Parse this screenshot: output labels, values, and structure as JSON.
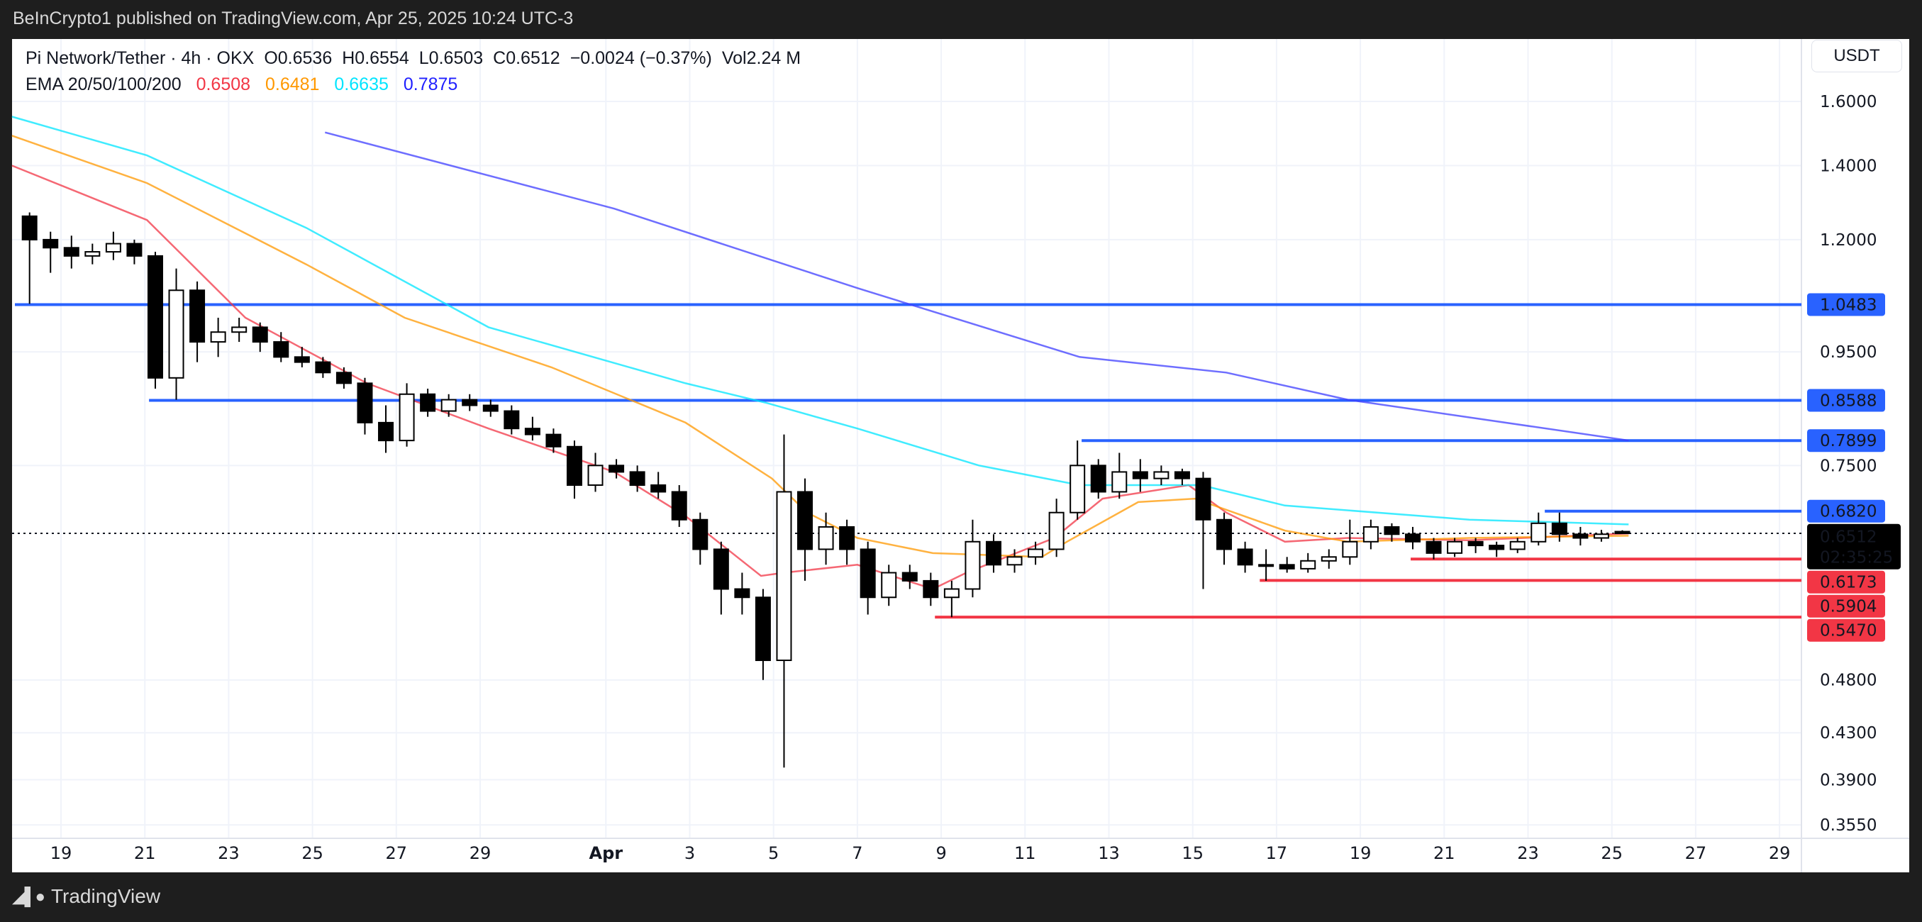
{
  "published": "BeInCrypto1 published on TradingView.com, Apr 25, 2025 10:24 UTC-3",
  "legend": {
    "symbol": "Pi Network/Tether · 4h · OKX",
    "open": "O0.6536",
    "high": "H0.6554",
    "low": "L0.6503",
    "close": "C0.6512",
    "change": "−0.0024 (−0.37%)",
    "volume": "Vol2.24 M",
    "ema_label": "EMA 20/50/100/200",
    "ema_values": [
      "0.6508",
      "0.6481",
      "0.6635",
      "0.7875"
    ]
  },
  "currency_button": "USDT",
  "footer": {
    "brand": "TradingView"
  },
  "colors": {
    "ema20": "#f23645",
    "ema50": "#ff9800",
    "ema100": "#00e5ff",
    "ema200": "#3d3dff",
    "resistance": "#2962ff",
    "support": "#f23645",
    "up": "#ffffff",
    "down": "#000000"
  },
  "chart_data": {
    "type": "candlestick",
    "title": "Pi Network/Tether · 4h · OKX",
    "yscale": "log",
    "ylim": [
      0.34,
      1.65
    ],
    "y_ticks": [
      "1.6000",
      "1.4000",
      "1.2000",
      "0.9500",
      "0.7500",
      "0.4800",
      "0.4300",
      "0.3900",
      "0.3550"
    ],
    "x_ticks": [
      {
        "label": "19",
        "day": 0
      },
      {
        "label": "21",
        "day": 2
      },
      {
        "label": "23",
        "day": 4
      },
      {
        "label": "25",
        "day": 6
      },
      {
        "label": "27",
        "day": 8
      },
      {
        "label": "29",
        "day": 10
      },
      {
        "label": "Apr",
        "day": 13
      },
      {
        "label": "3",
        "day": 15
      },
      {
        "label": "5",
        "day": 17
      },
      {
        "label": "7",
        "day": 19
      },
      {
        "label": "9",
        "day": 21
      },
      {
        "label": "11",
        "day": 23
      },
      {
        "label": "13",
        "day": 25
      },
      {
        "label": "15",
        "day": 27
      },
      {
        "label": "17",
        "day": 29
      },
      {
        "label": "19",
        "day": 31
      },
      {
        "label": "21",
        "day": 33
      },
      {
        "label": "23",
        "day": 35
      },
      {
        "label": "25",
        "day": 37
      },
      {
        "label": "27",
        "day": 39
      },
      {
        "label": "29",
        "day": 41
      }
    ],
    "candle_interval_days": 0.5,
    "candles_first_day": -1,
    "ohlc": [
      [
        1.26,
        1.27,
        1.05,
        1.2
      ],
      [
        1.2,
        1.22,
        1.12,
        1.18
      ],
      [
        1.18,
        1.21,
        1.13,
        1.16
      ],
      [
        1.16,
        1.19,
        1.14,
        1.17
      ],
      [
        1.17,
        1.22,
        1.15,
        1.19
      ],
      [
        1.19,
        1.2,
        1.14,
        1.16
      ],
      [
        1.16,
        1.17,
        0.88,
        0.9
      ],
      [
        0.9,
        1.13,
        0.86,
        1.08
      ],
      [
        1.08,
        1.1,
        0.93,
        0.97
      ],
      [
        0.97,
        1.02,
        0.94,
        0.99
      ],
      [
        0.99,
        1.02,
        0.97,
        1.0
      ],
      [
        1.0,
        1.01,
        0.95,
        0.97
      ],
      [
        0.97,
        0.99,
        0.93,
        0.94
      ],
      [
        0.94,
        0.96,
        0.92,
        0.93
      ],
      [
        0.93,
        0.94,
        0.9,
        0.91
      ],
      [
        0.91,
        0.92,
        0.88,
        0.89
      ],
      [
        0.89,
        0.9,
        0.8,
        0.82
      ],
      [
        0.82,
        0.85,
        0.77,
        0.79
      ],
      [
        0.79,
        0.89,
        0.78,
        0.87
      ],
      [
        0.87,
        0.88,
        0.83,
        0.84
      ],
      [
        0.84,
        0.87,
        0.83,
        0.86
      ],
      [
        0.86,
        0.87,
        0.84,
        0.85
      ],
      [
        0.85,
        0.86,
        0.83,
        0.84
      ],
      [
        0.84,
        0.85,
        0.8,
        0.81
      ],
      [
        0.81,
        0.83,
        0.79,
        0.8
      ],
      [
        0.8,
        0.81,
        0.77,
        0.78
      ],
      [
        0.78,
        0.79,
        0.7,
        0.72
      ],
      [
        0.72,
        0.77,
        0.71,
        0.75
      ],
      [
        0.75,
        0.76,
        0.73,
        0.74
      ],
      [
        0.74,
        0.75,
        0.71,
        0.72
      ],
      [
        0.72,
        0.74,
        0.7,
        0.71
      ],
      [
        0.71,
        0.72,
        0.66,
        0.67
      ],
      [
        0.67,
        0.68,
        0.61,
        0.63
      ],
      [
        0.63,
        0.64,
        0.55,
        0.58
      ],
      [
        0.58,
        0.6,
        0.55,
        0.57
      ],
      [
        0.57,
        0.58,
        0.48,
        0.5
      ],
      [
        0.5,
        0.8,
        0.4,
        0.71
      ],
      [
        0.71,
        0.73,
        0.59,
        0.63
      ],
      [
        0.63,
        0.68,
        0.61,
        0.66
      ],
      [
        0.66,
        0.67,
        0.61,
        0.63
      ],
      [
        0.63,
        0.64,
        0.55,
        0.57
      ],
      [
        0.57,
        0.61,
        0.56,
        0.6
      ],
      [
        0.6,
        0.61,
        0.58,
        0.59
      ],
      [
        0.59,
        0.6,
        0.56,
        0.57
      ],
      [
        0.57,
        0.59,
        0.547,
        0.58
      ],
      [
        0.58,
        0.67,
        0.57,
        0.64
      ],
      [
        0.64,
        0.65,
        0.6,
        0.61
      ],
      [
        0.61,
        0.63,
        0.6,
        0.62
      ],
      [
        0.62,
        0.64,
        0.61,
        0.63
      ],
      [
        0.63,
        0.7,
        0.62,
        0.68
      ],
      [
        0.68,
        0.79,
        0.67,
        0.75
      ],
      [
        0.75,
        0.76,
        0.7,
        0.71
      ],
      [
        0.71,
        0.77,
        0.7,
        0.74
      ],
      [
        0.74,
        0.76,
        0.71,
        0.73
      ],
      [
        0.73,
        0.75,
        0.72,
        0.74
      ],
      [
        0.74,
        0.745,
        0.72,
        0.73
      ],
      [
        0.73,
        0.74,
        0.58,
        0.67
      ],
      [
        0.67,
        0.68,
        0.61,
        0.63
      ],
      [
        0.63,
        0.64,
        0.6,
        0.61
      ],
      [
        0.61,
        0.63,
        0.59,
        0.61
      ],
      [
        0.61,
        0.62,
        0.6,
        0.605
      ],
      [
        0.605,
        0.625,
        0.6,
        0.615
      ],
      [
        0.615,
        0.63,
        0.605,
        0.62
      ],
      [
        0.62,
        0.67,
        0.61,
        0.64
      ],
      [
        0.64,
        0.67,
        0.63,
        0.66
      ],
      [
        0.66,
        0.665,
        0.64,
        0.65
      ],
      [
        0.65,
        0.66,
        0.63,
        0.64
      ],
      [
        0.64,
        0.645,
        0.617,
        0.625
      ],
      [
        0.625,
        0.645,
        0.62,
        0.64
      ],
      [
        0.64,
        0.645,
        0.625,
        0.635
      ],
      [
        0.635,
        0.64,
        0.62,
        0.63
      ],
      [
        0.63,
        0.645,
        0.625,
        0.64
      ],
      [
        0.64,
        0.68,
        0.635,
        0.665
      ],
      [
        0.665,
        0.68,
        0.64,
        0.65
      ],
      [
        0.65,
        0.66,
        0.635,
        0.645
      ],
      [
        0.645,
        0.656,
        0.64,
        0.65
      ],
      [
        0.6536,
        0.6554,
        0.6503,
        0.6512
      ]
    ],
    "ema": [
      {
        "name": "EMA 20",
        "color": "#f23645",
        "points": [
          [
            -1.17,
            1.4
          ],
          [
            2.05,
            1.25
          ],
          [
            4.4,
            1.02
          ],
          [
            7.3,
            0.89
          ],
          [
            10.2,
            0.81
          ],
          [
            13.2,
            0.74
          ],
          [
            14.9,
            0.675
          ],
          [
            16.7,
            0.596
          ],
          [
            17.25,
            0.6
          ],
          [
            19,
            0.61
          ],
          [
            20.8,
            0.58
          ],
          [
            21.6,
            0.6
          ],
          [
            23.7,
            0.645
          ],
          [
            24.85,
            0.7
          ],
          [
            26.9,
            0.72
          ],
          [
            27.8,
            0.68
          ],
          [
            29.2,
            0.64
          ],
          [
            30.7,
            0.645
          ],
          [
            33.6,
            0.642
          ],
          [
            37.4,
            0.651
          ]
        ]
      },
      {
        "name": "EMA 50",
        "color": "#ff9800",
        "points": [
          [
            -1.17,
            1.49
          ],
          [
            2.05,
            1.35
          ],
          [
            5.85,
            1.14
          ],
          [
            8.2,
            1.02
          ],
          [
            11.7,
            0.92
          ],
          [
            14.9,
            0.82
          ],
          [
            16.96,
            0.73
          ],
          [
            17.8,
            0.68
          ],
          [
            19,
            0.645
          ],
          [
            20.8,
            0.625
          ],
          [
            23.4,
            0.62
          ],
          [
            24,
            0.64
          ],
          [
            25.7,
            0.695
          ],
          [
            27.05,
            0.7
          ],
          [
            29.2,
            0.655
          ],
          [
            30.7,
            0.64
          ],
          [
            33.6,
            0.645
          ],
          [
            37.4,
            0.648
          ]
        ]
      },
      {
        "name": "EMA 100",
        "color": "#00e5ff",
        "points": [
          [
            -1.17,
            1.55
          ],
          [
            2.05,
            1.43
          ],
          [
            5.85,
            1.23
          ],
          [
            10.2,
            1.0
          ],
          [
            14.9,
            0.89
          ],
          [
            16.8,
            0.855
          ],
          [
            19,
            0.81
          ],
          [
            21.9,
            0.75
          ],
          [
            24.3,
            0.72
          ],
          [
            27.2,
            0.72
          ],
          [
            29.2,
            0.69
          ],
          [
            33.6,
            0.67
          ],
          [
            37.4,
            0.6635
          ]
        ]
      },
      {
        "name": "EMA 200",
        "color": "#3d3dff",
        "points": [
          [
            6.3,
            1.5
          ],
          [
            13.2,
            1.28
          ],
          [
            19,
            1.085
          ],
          [
            24.3,
            0.94
          ],
          [
            27.8,
            0.91
          ],
          [
            30.7,
            0.86
          ],
          [
            37.4,
            0.79
          ]
        ]
      }
    ],
    "levels": [
      {
        "label": "1.0483",
        "value": 1.0483,
        "from_day": -1.1,
        "kind": "resistance"
      },
      {
        "label": "0.8588",
        "value": 0.8588,
        "from_day": 2.1,
        "kind": "resistance"
      },
      {
        "label": "0.7899",
        "value": 0.7899,
        "from_day": 24.35,
        "kind": "resistance"
      },
      {
        "label": "0.6820",
        "value": 0.682,
        "from_day": 35.4,
        "kind": "resistance"
      },
      {
        "label": "0.6173",
        "value": 0.6173,
        "from_day": 32.2,
        "kind": "support"
      },
      {
        "label": "0.5904",
        "value": 0.5904,
        "from_day": 28.6,
        "kind": "support"
      },
      {
        "label": "0.5470",
        "value": 0.547,
        "from_day": 20.85,
        "kind": "support"
      }
    ],
    "last_price": {
      "label": "0.6512",
      "value": 0.6512,
      "countdown": "02:35:25"
    }
  }
}
